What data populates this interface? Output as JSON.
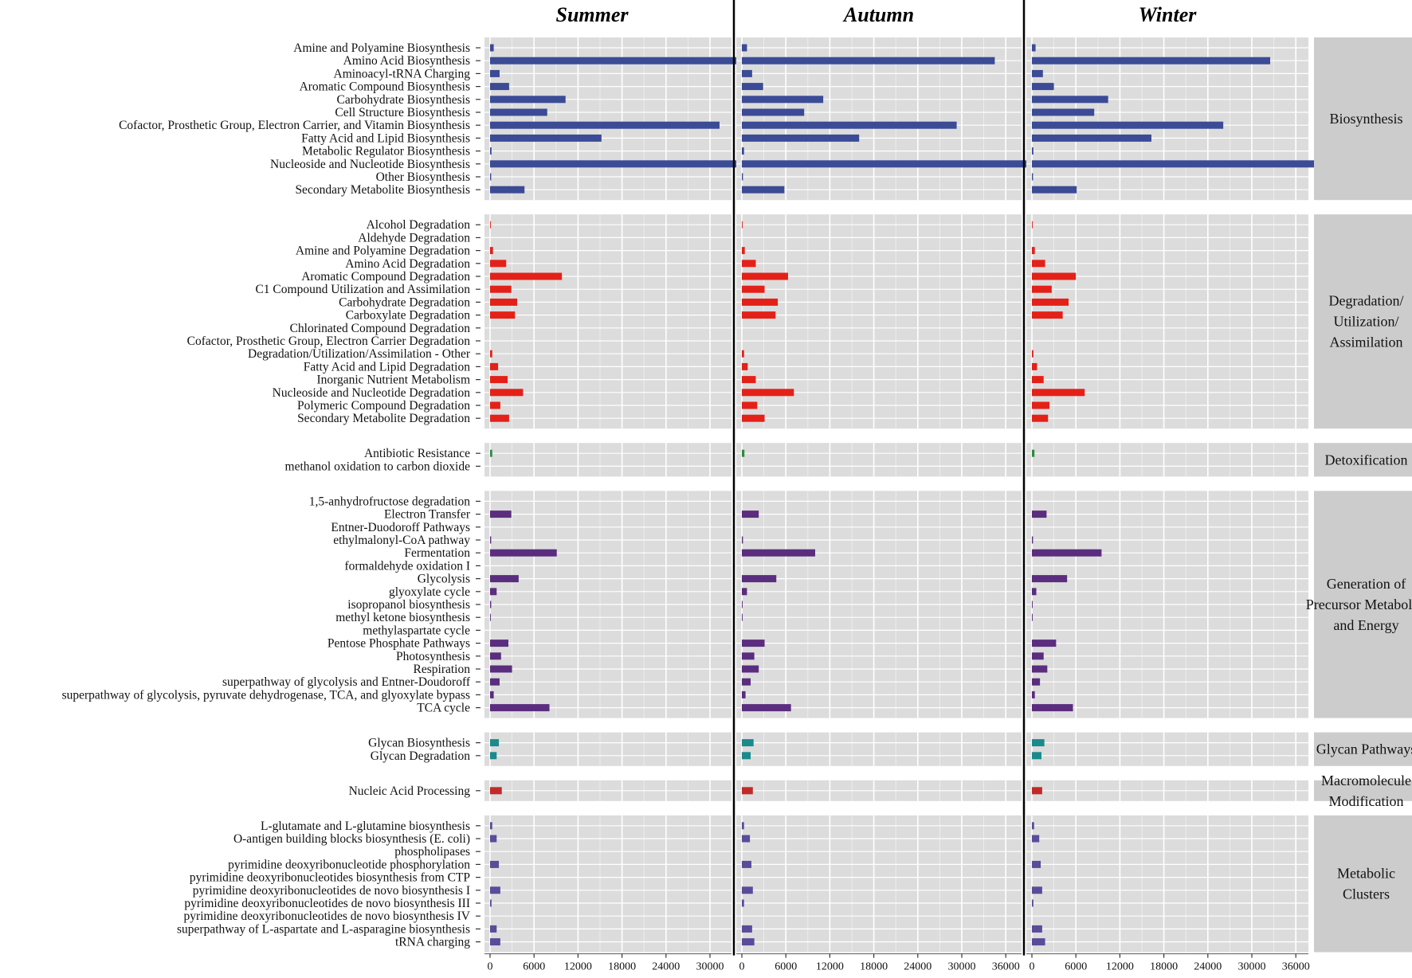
{
  "chart_data": {
    "type": "bar",
    "orientation": "horizontal",
    "facets": [
      "Summer",
      "Autumn",
      "Winter"
    ],
    "x_ticks": [
      0,
      6000,
      12000,
      18000,
      24000,
      30000,
      36000
    ],
    "xlim": [
      0,
      42000
    ],
    "groups": [
      {
        "name": "Biosynthesis",
        "label_lines": [
          "Biosynthesis"
        ],
        "color": "#3b4b96",
        "rows": [
          {
            "label": "Amine and Polyamine Biosynthesis",
            "values": [
              500,
              700,
              500
            ]
          },
          {
            "label": "Amino Acid Biosynthesis",
            "values": [
              34000,
              34500,
              32500
            ]
          },
          {
            "label": "Aminoacyl-tRNA Charging",
            "values": [
              1300,
              1400,
              1500
            ]
          },
          {
            "label": "Aromatic Compound Biosynthesis",
            "values": [
              2600,
              2900,
              3000
            ]
          },
          {
            "label": "Carbohydrate Biosynthesis",
            "values": [
              10300,
              11100,
              10400
            ]
          },
          {
            "label": "Cell Structure Biosynthesis",
            "values": [
              7800,
              8500,
              8500
            ]
          },
          {
            "label": "Cofactor, Prosthetic Group, Electron Carrier, and Vitamin Biosynthesis",
            "values": [
              31300,
              29300,
              26100
            ]
          },
          {
            "label": "Fatty Acid and Lipid Biosynthesis",
            "values": [
              15200,
              16000,
              16300
            ]
          },
          {
            "label": "Metabolic Regulator Biosynthesis",
            "values": [
              200,
              300,
              200
            ]
          },
          {
            "label": "Nucleoside and Nucleotide Biosynthesis",
            "values": [
              35800,
              40500,
              41400
            ]
          },
          {
            "label": "Other Biosynthesis",
            "values": [
              150,
              150,
              150
            ]
          },
          {
            "label": "Secondary Metabolite Biosynthesis",
            "values": [
              4700,
              5800,
              6100
            ]
          }
        ]
      },
      {
        "name": "Degradation/Utilization/Assimilation",
        "label_lines": [
          "Degradation/",
          "Utilization/",
          "Assimilation"
        ],
        "color": "#e32119",
        "rows": [
          {
            "label": "Alcohol Degradation",
            "values": [
              100,
              100,
              100
            ]
          },
          {
            "label": "Aldehyde Degradation",
            "values": [
              0,
              0,
              0
            ]
          },
          {
            "label": "Amine and Polyamine Degradation",
            "values": [
              400,
              400,
              400
            ]
          },
          {
            "label": "Amino Acid Degradation",
            "values": [
              2200,
              1900,
              1800
            ]
          },
          {
            "label": "Aromatic Compound Degradation",
            "values": [
              9800,
              6300,
              6000
            ]
          },
          {
            "label": "C1 Compound Utilization and Assimilation",
            "values": [
              2900,
              3100,
              2700
            ]
          },
          {
            "label": "Carbohydrate Degradation",
            "values": [
              3700,
              4900,
              5000
            ]
          },
          {
            "label": "Carboxylate Degradation",
            "values": [
              3400,
              4600,
              4200
            ]
          },
          {
            "label": "Chlorinated Compound Degradation",
            "values": [
              0,
              0,
              0
            ]
          },
          {
            "label": "Cofactor, Prosthetic Group, Electron Carrier Degradation",
            "values": [
              0,
              0,
              0
            ]
          },
          {
            "label": "Degradation/Utilization/Assimilation - Other",
            "values": [
              300,
              300,
              200
            ]
          },
          {
            "label": "Fatty Acid and Lipid Degradation",
            "values": [
              1100,
              800,
              700
            ]
          },
          {
            "label": "Inorganic Nutrient Metabolism",
            "values": [
              2400,
              1900,
              1600
            ]
          },
          {
            "label": "Nucleoside and Nucleotide Degradation",
            "values": [
              4500,
              7100,
              7200
            ]
          },
          {
            "label": "Polymeric Compound Degradation",
            "values": [
              1400,
              2100,
              2400
            ]
          },
          {
            "label": "Secondary Metabolite Degradation",
            "values": [
              2600,
              3100,
              2200
            ]
          }
        ]
      },
      {
        "name": "Detoxification",
        "label_lines": [
          "Detoxification"
        ],
        "color": "#2e8b3e",
        "rows": [
          {
            "label": "Antibiotic Resistance",
            "values": [
              300,
              350,
              350
            ]
          },
          {
            "label": "methanol oxidation to carbon dioxide",
            "values": [
              0,
              0,
              0
            ]
          }
        ]
      },
      {
        "name": "Generation of Precursor Metabolite and Energy",
        "label_lines": [
          "Generation of",
          "Precursor Metabolite",
          "and Energy"
        ],
        "color": "#5b2d7e",
        "rows": [
          {
            "label": "1,5-anhydrofructose degradation",
            "values": [
              0,
              0,
              0
            ]
          },
          {
            "label": "Electron Transfer",
            "values": [
              2900,
              2300,
              2000
            ]
          },
          {
            "label": "Entner-Duodoroff Pathways",
            "values": [
              0,
              0,
              0
            ]
          },
          {
            "label": "ethylmalonyl-CoA pathway",
            "values": [
              150,
              150,
              150
            ]
          },
          {
            "label": "Fermentation",
            "values": [
              9100,
              10000,
              9500
            ]
          },
          {
            "label": "formaldehyde oxidation I",
            "values": [
              0,
              0,
              0
            ]
          },
          {
            "label": "Glycolysis",
            "values": [
              3900,
              4700,
              4800
            ]
          },
          {
            "label": "glyoxylate cycle",
            "values": [
              900,
              700,
              600
            ]
          },
          {
            "label": "isopropanol biosynthesis",
            "values": [
              150,
              100,
              100
            ]
          },
          {
            "label": "methyl ketone biosynthesis",
            "values": [
              100,
              100,
              100
            ]
          },
          {
            "label": "methylaspartate cycle",
            "values": [
              0,
              0,
              0
            ]
          },
          {
            "label": "Pentose Phosphate Pathways",
            "values": [
              2500,
              3100,
              3300
            ]
          },
          {
            "label": "Photosynthesis",
            "values": [
              1500,
              1700,
              1600
            ]
          },
          {
            "label": "Respiration",
            "values": [
              3000,
              2300,
              2100
            ]
          },
          {
            "label": "superpathway of glycolysis and Entner-Doudoroff",
            "values": [
              1300,
              1200,
              1100
            ]
          },
          {
            "label": "superpathway of glycolysis, pyruvate dehydrogenase, TCA, and glyoxylate bypass",
            "values": [
              500,
              500,
              400
            ]
          },
          {
            "label": "TCA cycle",
            "values": [
              8100,
              6700,
              5600
            ]
          }
        ]
      },
      {
        "name": "Glycan Pathways",
        "label_lines": [
          "Glycan Pathways"
        ],
        "color": "#1b8a8c",
        "rows": [
          {
            "label": "Glycan Biosynthesis",
            "values": [
              1200,
              1600,
              1700
            ]
          },
          {
            "label": "Glycan Degradation",
            "values": [
              900,
              1200,
              1300
            ]
          }
        ]
      },
      {
        "name": "Macromolecule Modification",
        "label_lines": [
          "Macromolecule",
          "Modification"
        ],
        "color": "#c22a2a",
        "rows": [
          {
            "label": "Nucleic Acid Processing",
            "values": [
              1600,
              1500,
              1400
            ]
          }
        ]
      },
      {
        "name": "Metabolic Clusters",
        "label_lines": [
          "Metabolic",
          "Clusters"
        ],
        "color": "#5a4b9b",
        "rows": [
          {
            "label": "L-glutamate and L-glutamine biosynthesis",
            "values": [
              300,
              300,
              300
            ]
          },
          {
            "label": "O-antigen building blocks biosynthesis (E. coli)",
            "values": [
              900,
              1100,
              1000
            ]
          },
          {
            "label": "phospholipases",
            "values": [
              0,
              0,
              0
            ]
          },
          {
            "label": "pyrimidine deoxyribonucleotide phosphorylation",
            "values": [
              1200,
              1300,
              1200
            ]
          },
          {
            "label": "pyrimidine deoxyribonucleotides biosynthesis from CTP",
            "values": [
              0,
              0,
              0
            ]
          },
          {
            "label": "pyrimidine deoxyribonucleotides de novo biosynthesis I",
            "values": [
              1400,
              1500,
              1400
            ]
          },
          {
            "label": "pyrimidine deoxyribonucleotides de novo biosynthesis III",
            "values": [
              200,
              300,
              200
            ]
          },
          {
            "label": "pyrimidine deoxyribonucleotides de novo biosynthesis IV",
            "values": [
              0,
              0,
              0
            ]
          },
          {
            "label": "superpathway of L-aspartate and L-asparagine biosynthesis",
            "values": [
              900,
              1400,
              1400
            ]
          },
          {
            "label": "tRNA charging",
            "values": [
              1400,
              1700,
              1800
            ]
          }
        ]
      }
    ]
  }
}
